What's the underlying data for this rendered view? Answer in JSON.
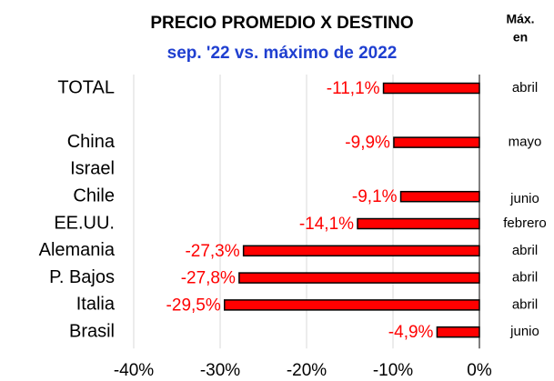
{
  "chart_data": {
    "type": "bar",
    "orientation": "horizontal",
    "title": "PRECIO PROMEDIO X DESTINO",
    "subtitle": "sep. '22 vs. máximo de 2022",
    "side_header": [
      "Máx.",
      "en"
    ],
    "categories": [
      "TOTAL",
      null,
      "China",
      "Israel",
      "Chile",
      "EE.UU.",
      "Alemania",
      "P. Bajos",
      "Italia",
      "Brasil"
    ],
    "values": [
      -11.1,
      null,
      -9.9,
      null,
      -9.1,
      -14.1,
      -27.3,
      -27.8,
      -29.5,
      -4.9
    ],
    "value_labels": [
      "-11,1%",
      null,
      "-9,9%",
      null,
      "-9,1%",
      "-14,1%",
      "-27,3%",
      "-27,8%",
      "-29,5%",
      "-4,9%"
    ],
    "side_labels": [
      "abril",
      null,
      "mayo",
      null,
      "junio",
      "febrero",
      "abril",
      "abril",
      "abril",
      "junio"
    ],
    "color": "#ff0000",
    "label_color": "#ff0000",
    "xlim": [
      -40,
      0
    ],
    "xticks": [
      {
        "value": -40,
        "label": "-40%"
      },
      {
        "value": -30,
        "label": "-30%"
      },
      {
        "value": -20,
        "label": "-20%"
      },
      {
        "value": -10,
        "label": "-10%"
      },
      {
        "value": 0,
        "label": "0%"
      }
    ],
    "grid": true
  }
}
